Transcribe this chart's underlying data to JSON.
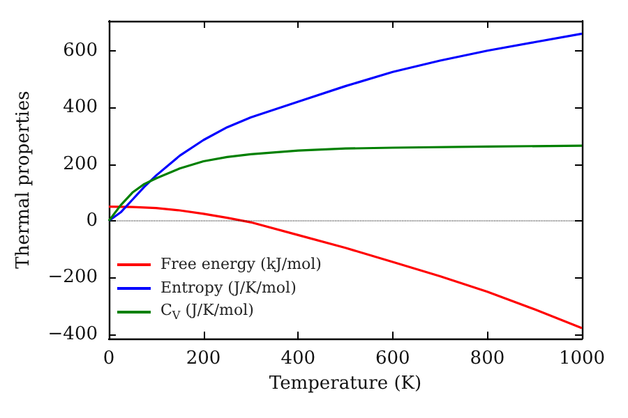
{
  "chart_data": {
    "type": "line",
    "xlabel": "Temperature (K)",
    "ylabel": "Thermal properties",
    "xlim": [
      0,
      1000
    ],
    "xticks": [
      0,
      200,
      400,
      600,
      800,
      1000
    ],
    "ylim": [
      -415,
      705
    ],
    "yticks": [
      {
        "value": -400,
        "label": "−400"
      },
      {
        "value": -200,
        "label": "−200"
      },
      0,
      200,
      400,
      600
    ],
    "series": [
      {
        "name": "Free energy (kJ/mol)",
        "color": "#ff0000",
        "x": [
          0,
          50,
          100,
          150,
          200,
          250,
          300,
          400,
          500,
          600,
          700,
          800,
          900,
          1000
        ],
        "values": [
          50,
          49,
          45,
          37,
          25,
          11,
          -5,
          -50,
          -95,
          -145,
          -195,
          -250,
          -312,
          -378
        ]
      },
      {
        "name": "Entropy (J/K/mol)",
        "color": "#0000ff",
        "x": [
          0,
          25,
          50,
          75,
          100,
          150,
          200,
          250,
          300,
          400,
          500,
          600,
          700,
          800,
          900,
          1000
        ],
        "values": [
          0,
          30,
          75,
          120,
          160,
          230,
          285,
          330,
          365,
          420,
          475,
          525,
          565,
          600,
          630,
          660
        ]
      },
      {
        "name": "C$_{V}$ (J/K/mol)",
        "color": "#008000",
        "x": [
          0,
          25,
          50,
          75,
          100,
          150,
          200,
          250,
          300,
          400,
          500,
          600,
          800,
          1000
        ],
        "values": [
          0,
          55,
          100,
          130,
          150,
          185,
          210,
          225,
          235,
          248,
          255,
          258,
          262,
          265
        ]
      }
    ],
    "ref_lines": [
      {
        "axis": "y",
        "value": 0,
        "color": "#000000",
        "line_style": "dotted"
      }
    ],
    "legend": "bottom left",
    "grid": false,
    "marker": "none",
    "line_style": "solid"
  }
}
